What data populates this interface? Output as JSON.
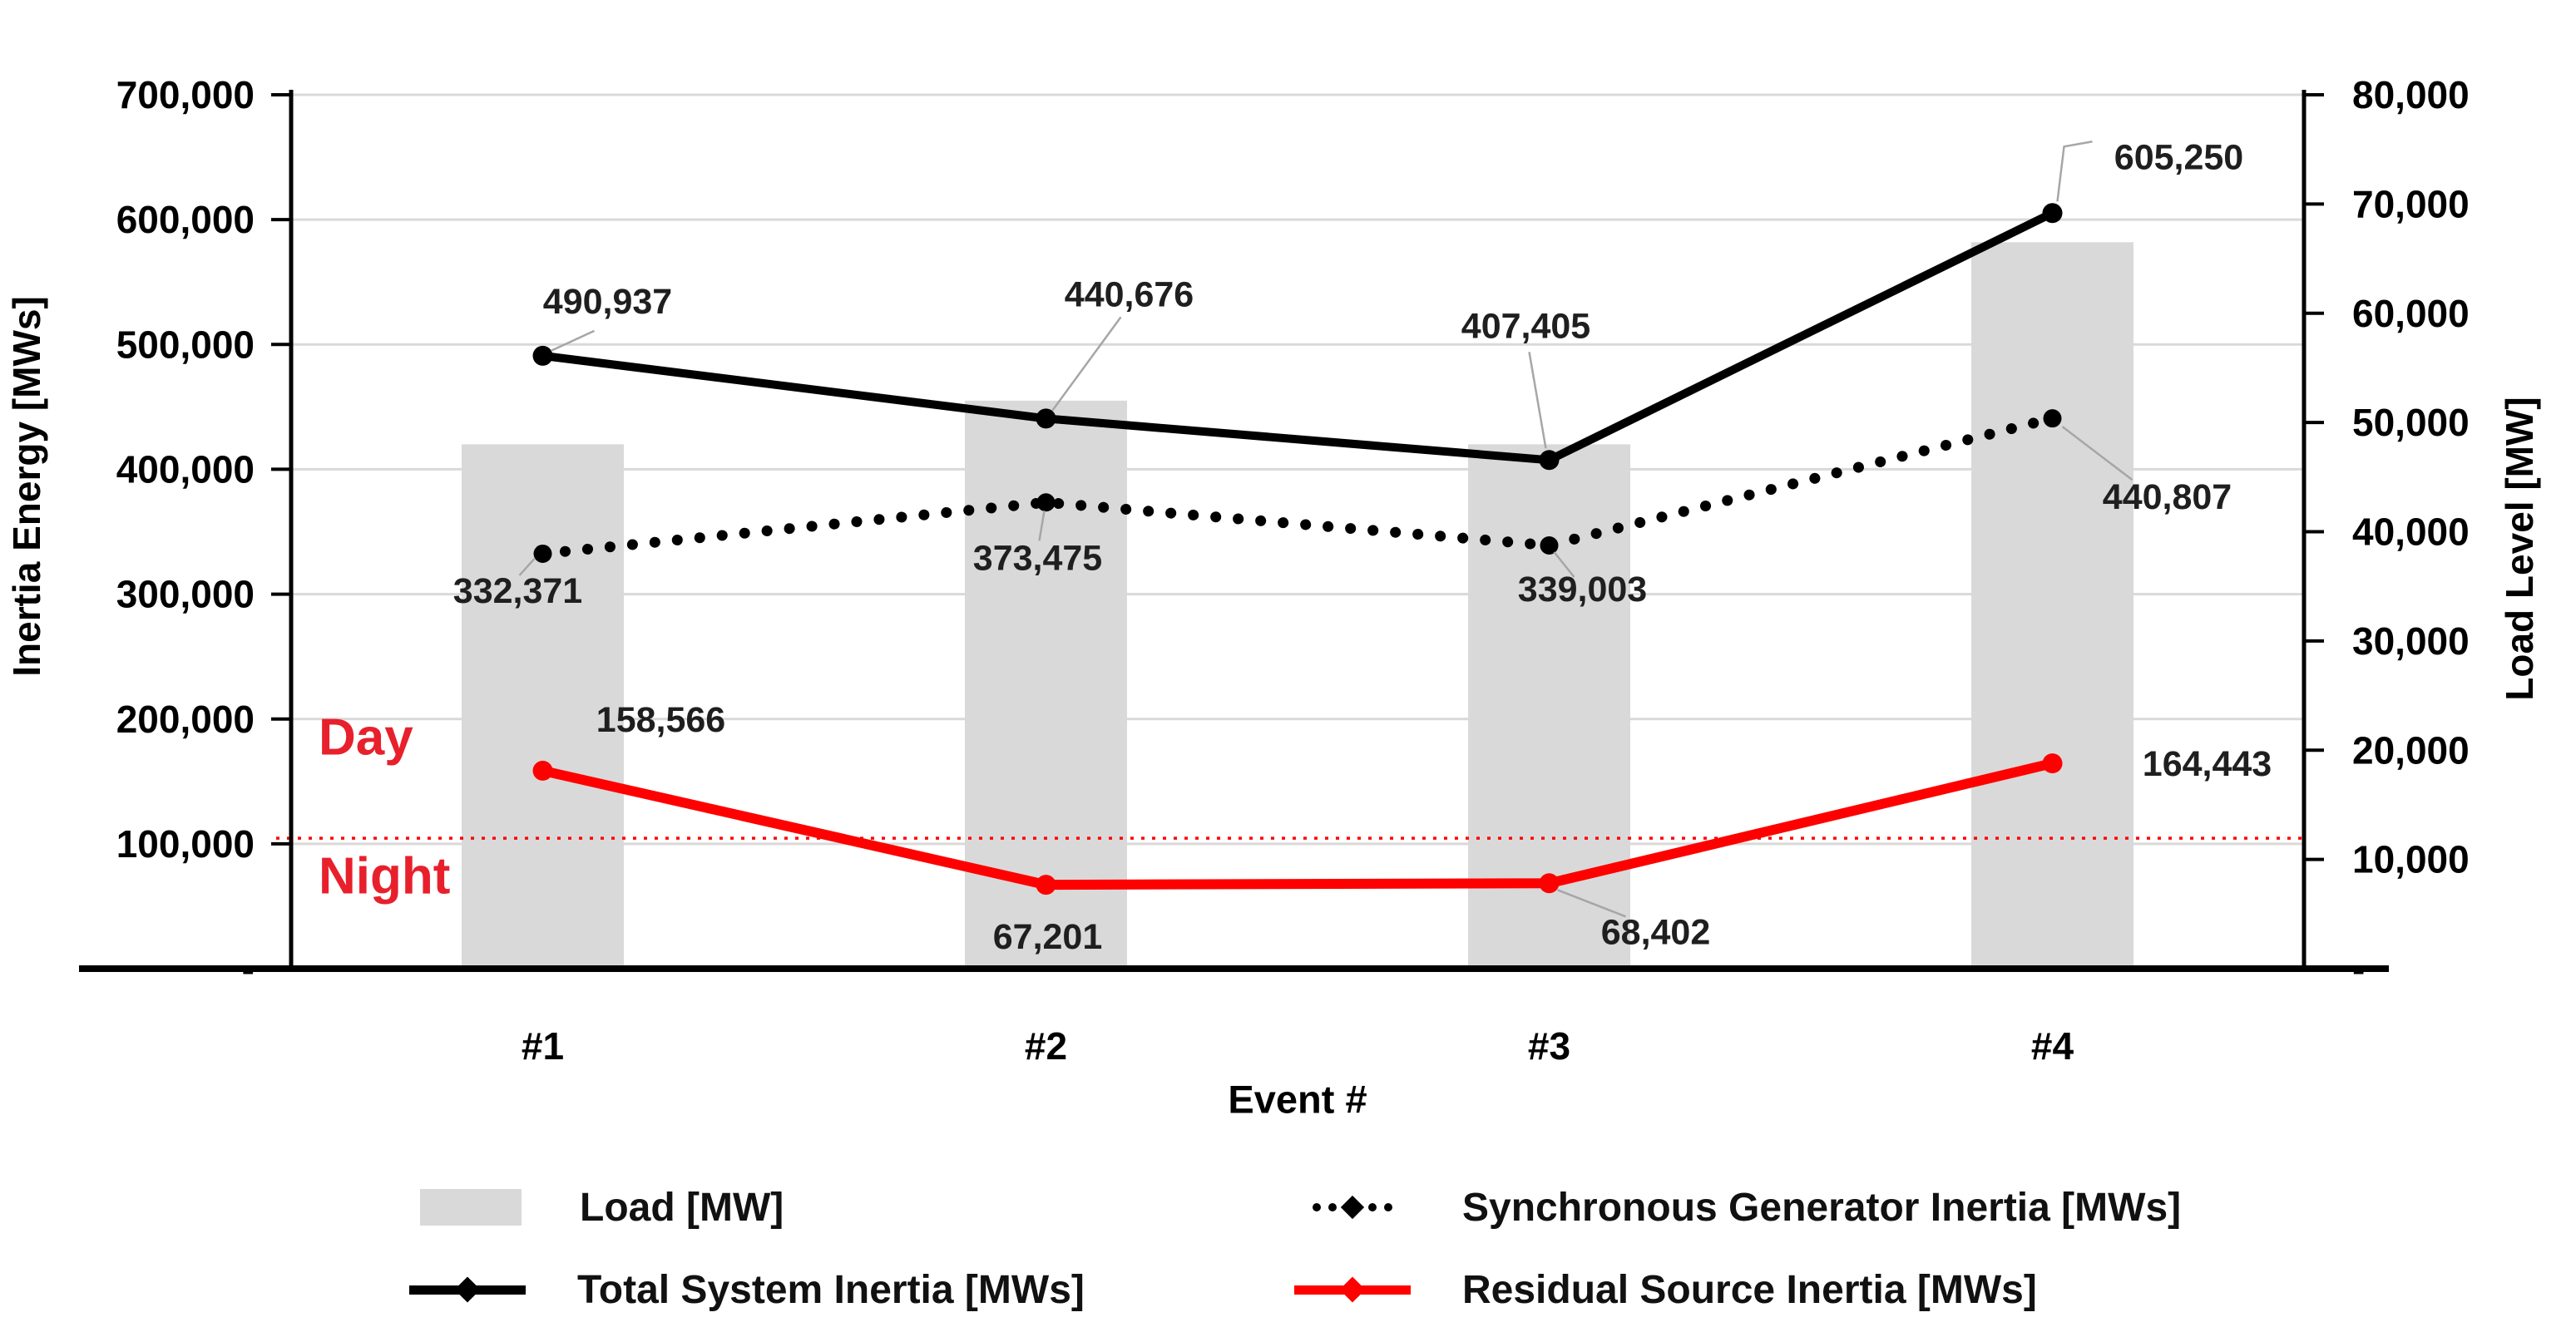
{
  "chart_data": {
    "type": "combo bar + line, dual axis",
    "categories": [
      "#1",
      "#2",
      "#3",
      "#4"
    ],
    "x_axis": {
      "title": "Event #"
    },
    "left_axis": {
      "title": "Inertia Energy [MWs]",
      "min": 0,
      "max": 700000,
      "step": 100000,
      "tick_labels_top_to_bottom": [
        "700,000",
        "600,000",
        "500,000",
        "400,000",
        "300,000",
        "200,000",
        "100,000",
        "-"
      ]
    },
    "right_axis": {
      "title": "Load Level [MW]",
      "min": 0,
      "max": 80000,
      "step": 10000,
      "tick_labels_top_to_bottom": [
        "80,000",
        "70,000",
        "60,000",
        "50,000",
        "40,000",
        "30,000",
        "20,000",
        "10,000",
        "-"
      ]
    },
    "grid": {
      "orientation": "horizontal",
      "left_axis_step": 100000,
      "color": "#d9d9d9"
    },
    "series": [
      {
        "name": "Load [MW]",
        "type": "bar",
        "axis": "right",
        "color": "#d9d9d9",
        "values": [
          48000,
          52000,
          48000,
          66500
        ]
      },
      {
        "name": "Total System Inertia [MWs]",
        "type": "line",
        "style": "solid",
        "axis": "left",
        "color": "#000000",
        "values": [
          490937,
          440676,
          407405,
          605250
        ],
        "labels": [
          "490,937",
          "440,676",
          "407,405",
          "605,250"
        ]
      },
      {
        "name": "Synchronous Generator Inertia [MWs]",
        "type": "line",
        "style": "dotted",
        "axis": "left",
        "color": "#000000",
        "values": [
          332371,
          373475,
          339003,
          440807
        ],
        "labels": [
          "332,371",
          "373,475",
          "339,003",
          "440,807"
        ]
      },
      {
        "name": "Residual Source Inertia [MWs]",
        "type": "line",
        "style": "solid",
        "axis": "left",
        "color": "#ff0000",
        "values": [
          158566,
          67201,
          68402,
          164443
        ],
        "labels": [
          "158,566",
          "67,201",
          "68,402",
          "164,443"
        ]
      }
    ],
    "threshold_line": {
      "left_axis_value": 104500,
      "style": "dotted",
      "color": "#ff0000",
      "label_above": "Day",
      "label_below": "Night",
      "label_color": "#e8202c"
    },
    "legend_position": "bottom, two columns, two rows"
  },
  "legend": {
    "items": [
      {
        "label": "Load [MW]",
        "swatch": "bar",
        "color": "#d9d9d9"
      },
      {
        "label": "Synchronous Generator Inertia [MWs]",
        "swatch": "dotted-line",
        "color": "#000000"
      },
      {
        "label": "Total System Inertia [MWs]",
        "swatch": "solid-line",
        "color": "#000000"
      },
      {
        "label": "Residual Source Inertia [MWs]",
        "swatch": "solid-line",
        "color": "#ff0000"
      }
    ]
  }
}
